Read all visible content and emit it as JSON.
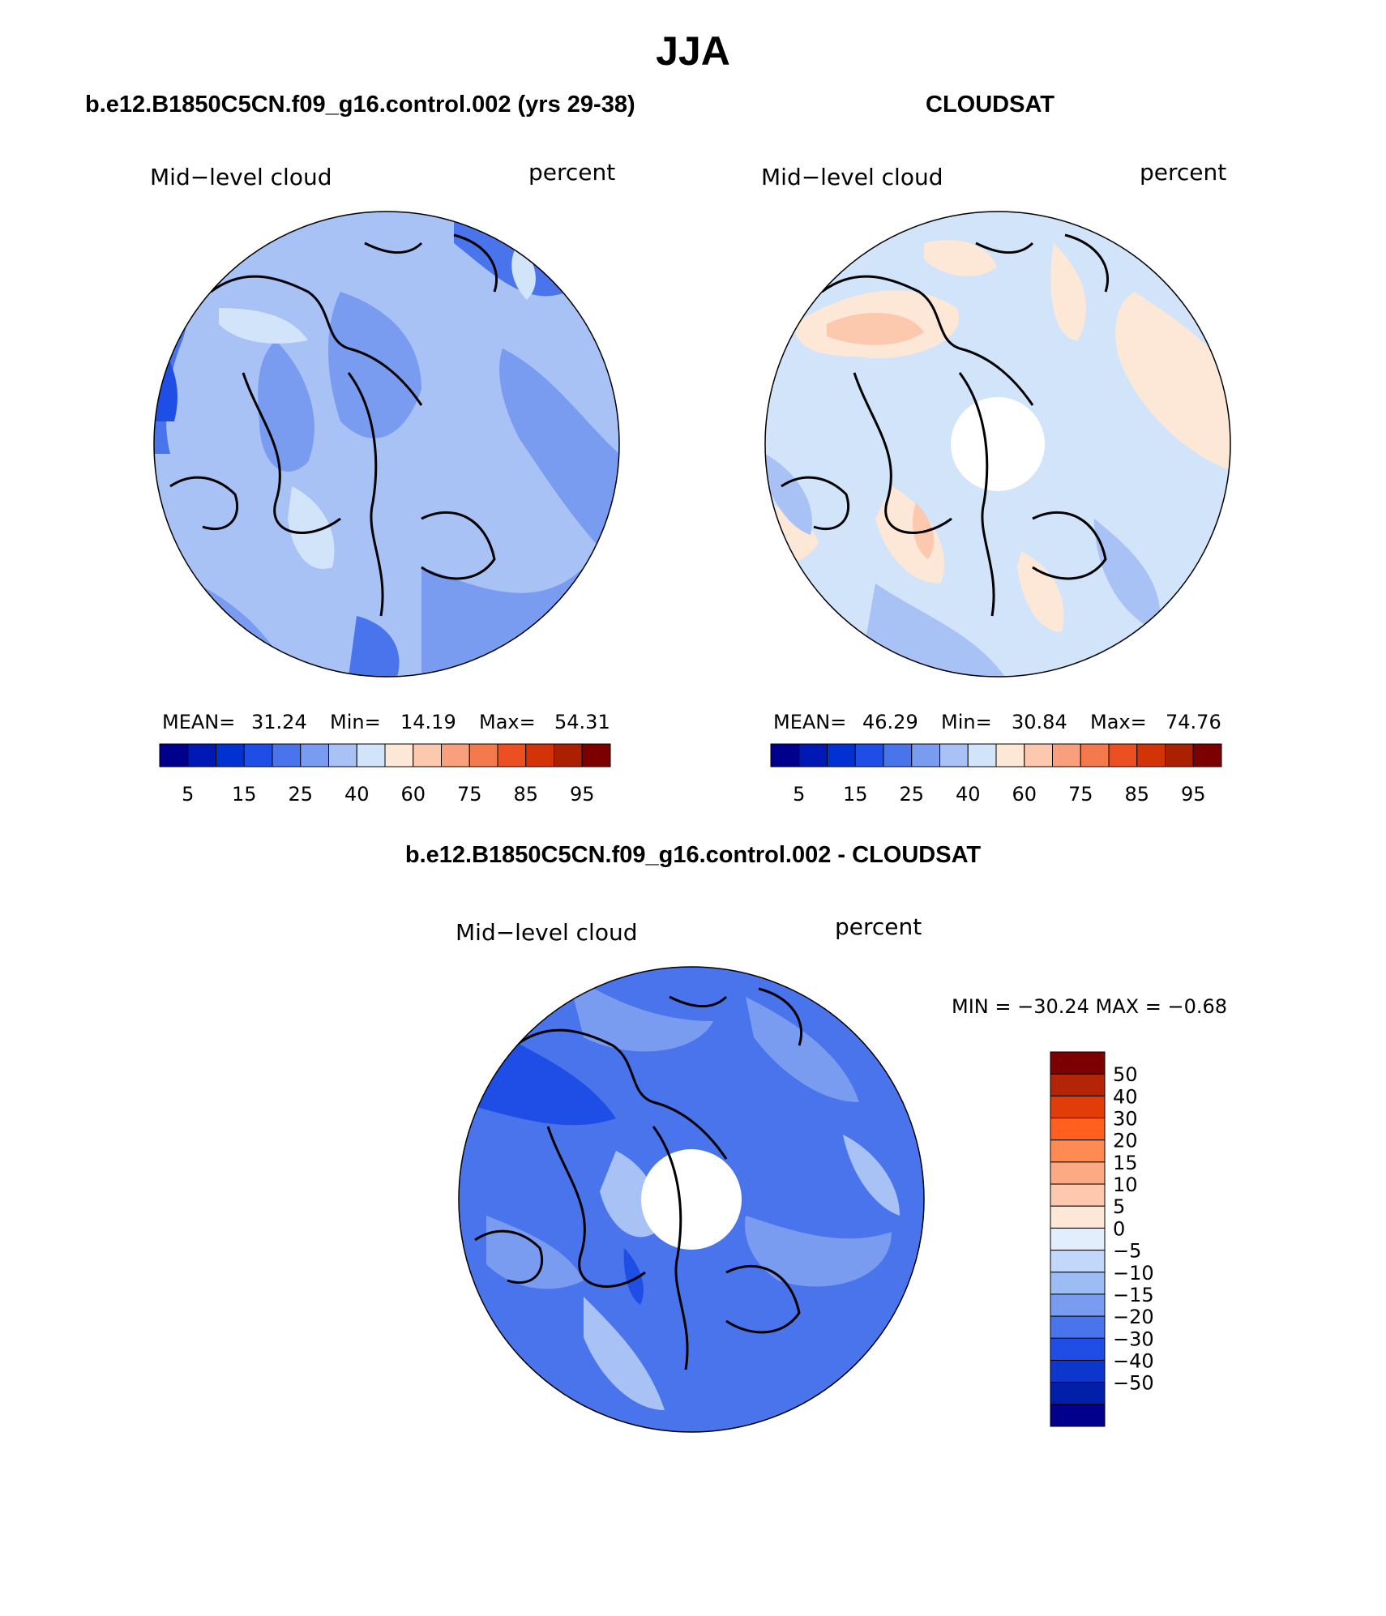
{
  "figure": {
    "title": "JJA"
  },
  "panels": [
    {
      "id": "model",
      "header": "b.e12.B1850C5CN.f09_g16.control.002 (yrs 29-38)",
      "left_label": "Mid−level cloud",
      "right_label": "percent",
      "stats": {
        "mean_label": "MEAN=",
        "mean": "31.24",
        "min_label": "Min=",
        "min": "14.19",
        "max_label": "Max=",
        "max": "54.31"
      }
    },
    {
      "id": "obs",
      "header": "CLOUDSAT",
      "left_label": "Mid−level cloud",
      "right_label": "percent",
      "stats": {
        "mean_label": "MEAN=",
        "mean": "46.29",
        "min_label": "Min=",
        "min": "30.84",
        "max_label": "Max=",
        "max": "74.76"
      }
    },
    {
      "id": "diff",
      "header": "b.e12.B1850C5CN.f09_g16.control.002 - CLOUDSAT",
      "left_label": "Mid−level cloud",
      "right_label": "percent",
      "minmax": "MIN = −30.24  MAX =   −0.68"
    }
  ],
  "colorbars": {
    "abs": {
      "colors": [
        "#00008c",
        "#0018b4",
        "#0032d2",
        "#1e4ee6",
        "#4a74ec",
        "#7a9cf0",
        "#a8c2f6",
        "#d2e4fa",
        "#fde8d8",
        "#fcc8ae",
        "#f8a07e",
        "#f47a4e",
        "#ec5022",
        "#d23408",
        "#aa2000",
        "#7c0000"
      ],
      "tick_labels": [
        "5",
        "15",
        "25",
        "40",
        "60",
        "75",
        "85",
        "95"
      ]
    },
    "diff": {
      "colors": [
        "#7c0000",
        "#b42406",
        "#e23c08",
        "#ff6020",
        "#ff8a52",
        "#fbaa84",
        "#fdc8ae",
        "#fde8d8",
        "#e2eefc",
        "#c2d8fa",
        "#9cbcf4",
        "#7a9cf0",
        "#4a74ec",
        "#1e4ee6",
        "#0c36cc",
        "#0020aa",
        "#00008c"
      ],
      "tick_labels": [
        "50",
        "40",
        "30",
        "20",
        "15",
        "10",
        "5",
        "0",
        "−5",
        "−10",
        "−15",
        "−20",
        "−30",
        "−40",
        "−50"
      ]
    }
  }
}
